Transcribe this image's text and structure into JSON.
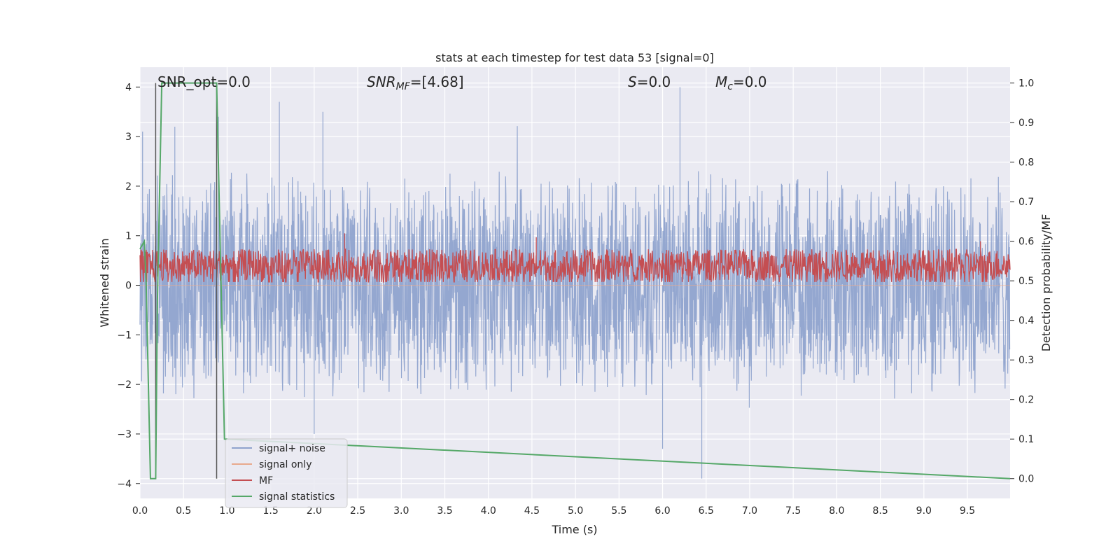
{
  "chart_data": {
    "type": "line",
    "title": "stats at each timestep for test data 53 [signal=0]",
    "xlabel": "Time (s)",
    "ylabel_left": "Whitened strain",
    "ylabel_right": "Detection probability/MF",
    "xlim": [
      0.0,
      9.99
    ],
    "ylim_left": [
      -4.3,
      4.4
    ],
    "ylim_right": [
      -0.05,
      1.04
    ],
    "x_ticks": [
      "0.0",
      "0.5",
      "1.0",
      "1.5",
      "2.0",
      "2.5",
      "3.0",
      "3.5",
      "4.0",
      "4.5",
      "5.0",
      "5.5",
      "6.0",
      "6.5",
      "7.0",
      "7.5",
      "8.0",
      "8.5",
      "9.0",
      "9.5"
    ],
    "y_left_ticks": [
      "−4",
      "−3",
      "−2",
      "−1",
      "0",
      "1",
      "2",
      "3",
      "4"
    ],
    "y_right_ticks": [
      "0.0",
      "0.1",
      "0.2",
      "0.3",
      "0.4",
      "0.5",
      "0.6",
      "0.7",
      "0.8",
      "0.9",
      "1.0"
    ],
    "grid": true,
    "legend_placement": "lower-left",
    "annotations": {
      "snr_opt": "SNR_opt=0.0",
      "snr_mf": "=[4.68]",
      "snr_mf_symbol": "SNR",
      "snr_mf_sub": "MF",
      "s_symbol": "S",
      "s_value": "=0.0",
      "mc_symbol": "M",
      "mc_sub": "c",
      "mc_value": "=0.0"
    },
    "series": [
      {
        "name": "signal+ noise",
        "axis": "left",
        "color": "#8fa3cd",
        "description_stats": {
          "envelope_pos": 2.0,
          "envelope_neg": -2.0,
          "peak_max": 4.0,
          "peak_min": -3.9
        },
        "spikes": [
          [
            0.03,
            3.1
          ],
          [
            0.4,
            3.2
          ],
          [
            0.9,
            3.4
          ],
          [
            1.6,
            3.7
          ],
          [
            2.1,
            3.5
          ],
          [
            6.2,
            4.0
          ],
          [
            6.45,
            -3.9
          ],
          [
            6.0,
            -3.3
          ],
          [
            2.0,
            -3.0
          ]
        ]
      },
      {
        "name": "signal only",
        "axis": "left",
        "color": "#e8a98d",
        "x": [
          0.0,
          9.99
        ],
        "y": [
          0.0,
          0.0
        ]
      },
      {
        "name": "MF",
        "axis": "right",
        "color": "#c44e52",
        "baseline": 0.52,
        "band": [
          0.5,
          0.58
        ],
        "peaks": [
          [
            0.05,
            0.6
          ],
          [
            2.35,
            0.62
          ],
          [
            4.55,
            0.61
          ],
          [
            9.65,
            0.6
          ]
        ]
      },
      {
        "name": "signal statistics",
        "axis": "right",
        "color": "#55a868",
        "x": [
          0.0,
          0.05,
          0.07,
          0.12,
          0.18,
          0.2,
          0.25,
          0.88,
          0.93,
          0.97,
          9.99
        ],
        "y": [
          0.58,
          0.6,
          0.5,
          0.0,
          0.0,
          0.45,
          1.0,
          1.0,
          0.5,
          0.1,
          0.0
        ]
      }
    ],
    "vlines": [
      0.18,
      0.88
    ],
    "vline_color": "#555555"
  }
}
